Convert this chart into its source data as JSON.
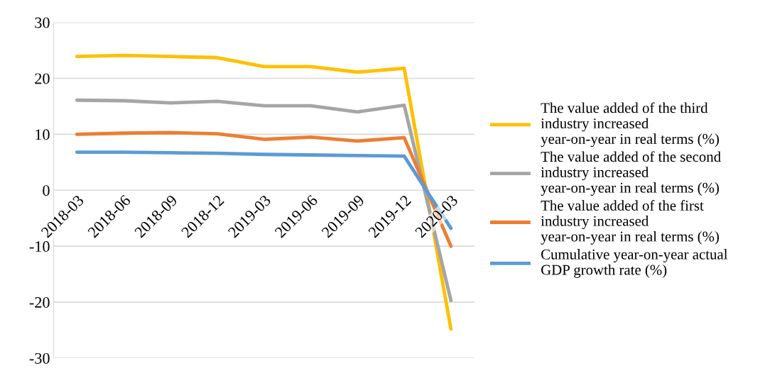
{
  "chart_data": {
    "type": "line",
    "categories": [
      "2018-03",
      "2018-06",
      "2018-09",
      "2018-12",
      "2019-03",
      "2019-06",
      "2019-09",
      "2019-12",
      "2020-03"
    ],
    "series": [
      {
        "name": "The value added of the third industry increased year-on-year in real terms (%)",
        "color": "#ffc000",
        "values": [
          23.9,
          24.1,
          23.9,
          23.7,
          22.1,
          22.1,
          21.1,
          21.8,
          -24.8
        ]
      },
      {
        "name": "The value added of the second industry increased year-on-year in real terms (%)",
        "color": "#a5a5a5",
        "values": [
          16.1,
          16.0,
          15.6,
          15.9,
          15.1,
          15.1,
          14.0,
          15.2,
          -19.7
        ]
      },
      {
        "name": "The value added of the first industry increased year-on-year in real terms (%)",
        "color": "#ed7d31",
        "values": [
          10.0,
          10.2,
          10.3,
          10.1,
          9.1,
          9.5,
          8.8,
          9.4,
          -10.0
        ]
      },
      {
        "name": "Cumulative year-on-year actual GDP growth rate (%)",
        "color": "#5b9bd5",
        "values": [
          6.8,
          6.8,
          6.7,
          6.6,
          6.4,
          6.3,
          6.2,
          6.1,
          -6.8
        ]
      }
    ],
    "ylim": [
      -30,
      30
    ],
    "yticks": [
      -30,
      -20,
      -10,
      0,
      10,
      20,
      30
    ],
    "grid": "y",
    "legend": "right",
    "marker": "none",
    "line_style": "solid"
  }
}
